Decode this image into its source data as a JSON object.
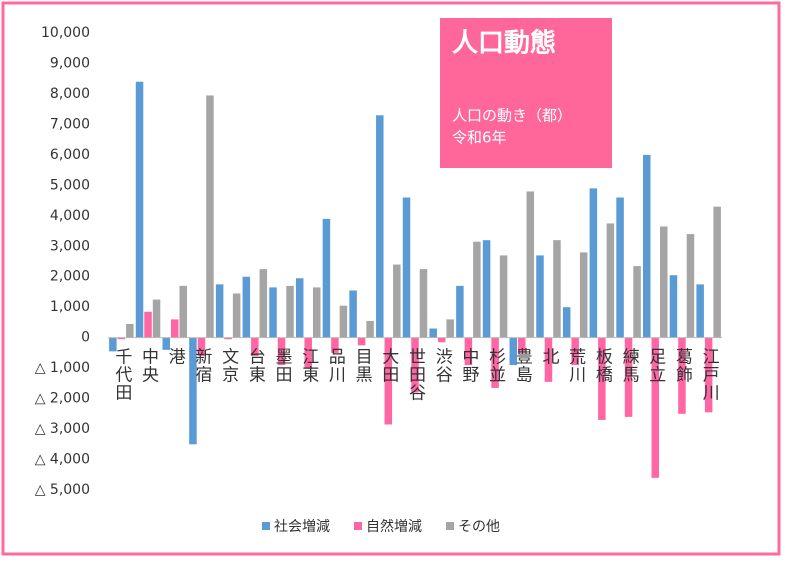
{
  "chart_data": {
    "type": "bar",
    "title": "人口動態",
    "subtitle": "人口の動き（都）",
    "annotation": "令和6年",
    "categories": [
      "千代田",
      "中央",
      "港",
      "新宿",
      "文京",
      "台東",
      "墨田",
      "江東",
      "品川",
      "目黒",
      "大田",
      "世田谷",
      "渋谷",
      "中野",
      "杉並",
      "豊島",
      "北",
      "荒川",
      "板橋",
      "練馬",
      "足立",
      "葛飾",
      "江戸川"
    ],
    "series": [
      {
        "name": "社会増減",
        "color": "#5b9bd5",
        "values": [
          -450,
          8400,
          -400,
          -3500,
          1750,
          2000,
          1650,
          1950,
          3900,
          1550,
          7300,
          4600,
          300,
          1700,
          3200,
          -900,
          2700,
          1000,
          4900,
          4600,
          6000,
          2050,
          1750
        ]
      },
      {
        "name": "自然増減",
        "color": "#ff66a3",
        "values": [
          -50,
          850,
          600,
          -600,
          -50,
          -600,
          -900,
          -1000,
          -500,
          -250,
          -2850,
          -1800,
          -150,
          -900,
          -1650,
          -500,
          -1450,
          -900,
          -2700,
          -2600,
          -4600,
          -2500,
          -2450
        ]
      },
      {
        "name": "その他",
        "color": "#a5a5a5",
        "values": [
          450,
          1250,
          1700,
          7950,
          1450,
          2250,
          1700,
          1650,
          1050,
          550,
          2400,
          2250,
          600,
          3150,
          2700,
          4800,
          3200,
          2800,
          3750,
          2350,
          3650,
          3400,
          4300
        ]
      }
    ],
    "ylim": [
      -5000,
      10000
    ],
    "yticks": [
      {
        "value": 10000,
        "label": "10,000"
      },
      {
        "value": 9000,
        "label": "9,000"
      },
      {
        "value": 8000,
        "label": "8,000"
      },
      {
        "value": 7000,
        "label": "7,000"
      },
      {
        "value": 6000,
        "label": "6,000"
      },
      {
        "value": 5000,
        "label": "5,000"
      },
      {
        "value": 4000,
        "label": "4,000"
      },
      {
        "value": 3000,
        "label": "3,000"
      },
      {
        "value": 2000,
        "label": "2,000"
      },
      {
        "value": 1000,
        "label": "1,000"
      },
      0,
      {
        "value": -1000,
        "label": "△ 1,000"
      },
      {
        "value": -2000,
        "label": "△ 2,000"
      },
      {
        "value": -3000,
        "label": "△ 3,000"
      },
      {
        "value": -4000,
        "label": "△ 4,000"
      },
      {
        "value": -5000,
        "label": "△ 5,000"
      }
    ],
    "grid": false,
    "legend": "bottom"
  }
}
